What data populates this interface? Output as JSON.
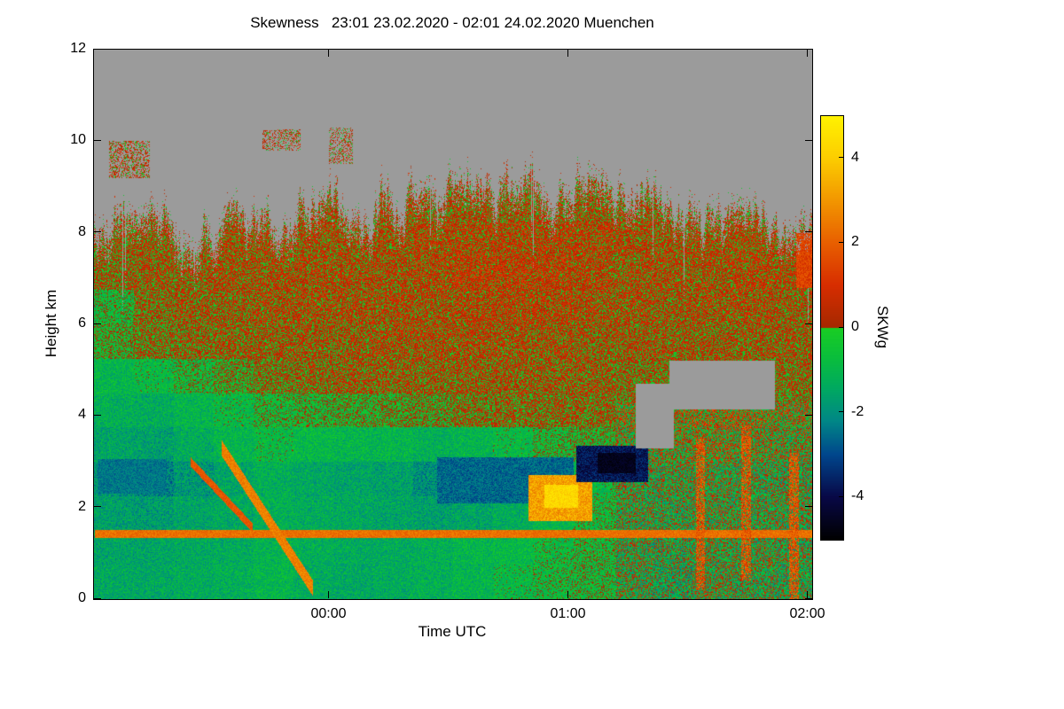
{
  "chart_data": {
    "type": "heatmap",
    "title": "Skewness   23:01 23.02.2020 - 02:01 24.02.2020 Muenchen",
    "xlabel": "Time UTC",
    "ylabel": "Height km",
    "x_range": [
      23.0167,
      26.0167
    ],
    "y_range": [
      0,
      12
    ],
    "x_ticks": [
      {
        "label": "00:00",
        "t": 24.0
      },
      {
        "label": "01:00",
        "t": 25.0
      },
      {
        "label": "02:00",
        "t": 26.0
      }
    ],
    "y_ticks": [
      {
        "label": "0",
        "h": 0
      },
      {
        "label": "2",
        "h": 2
      },
      {
        "label": "4",
        "h": 4
      },
      {
        "label": "6",
        "h": 6
      },
      {
        "label": "8",
        "h": 8
      },
      {
        "label": "10",
        "h": 10
      },
      {
        "label": "12",
        "h": 12
      }
    ],
    "colorbar": {
      "label": "SKWg",
      "range": [
        -5,
        5
      ],
      "ticks": [
        {
          "label": "4",
          "v": 4
        },
        {
          "label": "2",
          "v": 2
        },
        {
          "label": "0",
          "v": 0
        },
        {
          "label": "-2",
          "v": -2
        },
        {
          "label": "-4",
          "v": -4
        }
      ]
    },
    "no_data_rgb": [
      155,
      155,
      155
    ],
    "noise_amp": 0.9,
    "colormap": {
      "negative": [
        [
          -5,
          0,
          0,
          0
        ],
        [
          -4,
          8,
          8,
          70
        ],
        [
          -3,
          0,
          70,
          140
        ],
        [
          -2.2,
          0,
          135,
          135
        ],
        [
          -1.4,
          0,
          170,
          95
        ],
        [
          -0.7,
          10,
          190,
          60
        ],
        [
          0,
          25,
          205,
          35
        ]
      ],
      "positive": [
        [
          0,
          165,
          40,
          0
        ],
        [
          1,
          215,
          45,
          0
        ],
        [
          2,
          232,
          95,
          0
        ],
        [
          3,
          242,
          150,
          0
        ],
        [
          4,
          252,
          205,
          0
        ],
        [
          5,
          255,
          242,
          0
        ]
      ]
    },
    "grid": {
      "nx": 18,
      "ny": 16,
      "row_order": "bottom-to-top",
      "cloud_top": [
        8.1,
        8.2,
        7.6,
        8.3,
        8.0,
        8.5,
        8.4,
        8.6,
        8.7,
        8.9,
        8.8,
        8.7,
        8.9,
        8.5,
        8.4,
        8.1,
        8.3,
        7.9
      ],
      "values": [
        [
          -1.4,
          -1.4,
          -1.3,
          -1.2,
          -1.0,
          -1.3,
          -1.4,
          -1.3,
          -1.2,
          -1.0,
          -0.8,
          -0.6,
          -0.5,
          -0.6,
          -0.8,
          -0.5,
          -0.6,
          -0.7
        ],
        [
          -1.5,
          -1.5,
          -1.4,
          -1.3,
          -1.1,
          -1.2,
          -1.3,
          -1.3,
          -1.2,
          -1.0,
          -0.9,
          -0.7,
          -0.5,
          -0.5,
          -0.7,
          -0.5,
          -0.5,
          -0.6
        ],
        [
          -1.6,
          -1.7,
          -1.5,
          -1.4,
          -1.2,
          -1.3,
          -1.4,
          -1.5,
          -1.6,
          -1.5,
          -1.3,
          -1.0,
          -0.6,
          -0.5,
          -0.6,
          -0.4,
          -0.5,
          -0.5
        ],
        [
          -1.8,
          -2.2,
          -1.8,
          -1.5,
          -1.2,
          -1.4,
          -1.5,
          -1.6,
          -2.0,
          -2.2,
          -2.0,
          -1.5,
          -0.8,
          -0.5,
          -0.5,
          -0.4,
          -0.5,
          -0.6
        ],
        [
          -1.5,
          -1.6,
          -1.3,
          -1.0,
          -0.8,
          -0.9,
          -1.0,
          -1.0,
          -1.2,
          -1.0,
          -0.8,
          -0.5,
          -0.3,
          -0.2,
          -0.2,
          0.0,
          -0.2,
          -0.3
        ],
        [
          -1.2,
          -1.3,
          -1.0,
          -0.8,
          -0.5,
          -0.4,
          -0.3,
          -0.2,
          -0.1,
          0.1,
          0.2,
          0.2,
          0.2,
          0.1,
          0.0,
          0.2,
          0.1,
          0.0
        ],
        [
          -1.0,
          -0.8,
          -0.5,
          -0.2,
          0.1,
          0.2,
          0.3,
          0.3,
          0.3,
          0.3,
          0.3,
          0.3,
          0.3,
          0.2,
          0.2,
          0.3,
          0.2,
          0.2
        ],
        [
          -0.3,
          0.1,
          0.2,
          0.3,
          0.3,
          0.3,
          0.3,
          0.4,
          0.4,
          0.4,
          0.4,
          0.4,
          0.3,
          0.3,
          0.3,
          0.3,
          0.3,
          0.3
        ],
        [
          -0.5,
          0.2,
          0.3,
          0.3,
          0.4,
          0.4,
          0.4,
          0.4,
          0.4,
          0.5,
          0.5,
          0.5,
          0.4,
          0.4,
          0.3,
          0.4,
          0.4,
          0.3
        ],
        [
          0.2,
          0.3,
          0.3,
          0.4,
          0.4,
          0.4,
          0.4,
          0.4,
          0.5,
          0.6,
          0.6,
          0.6,
          0.5,
          0.4,
          0.4,
          0.4,
          0.5,
          0.4
        ],
        [
          0.3,
          0.3,
          0.3,
          0.4,
          0.4,
          0.4,
          0.4,
          0.4,
          0.5,
          0.5,
          0.5,
          0.5,
          0.5,
          0.4,
          0.4,
          0.4,
          0.4,
          0.4
        ],
        [
          0.3,
          0.3,
          0.3,
          0.3,
          0.3,
          0.3,
          0.3,
          0.3,
          0.3,
          0.3,
          0.3,
          0.3,
          0.3,
          0.3,
          0.3,
          0.3,
          0.3,
          0.3
        ],
        [
          0.3,
          0.3,
          0.3,
          0.3,
          0.3,
          0.3,
          0.3,
          0.3,
          0.3,
          0.3,
          0.3,
          0.3,
          0.3,
          0.3,
          0.3,
          0.3,
          0.3,
          0.3
        ],
        [
          0.3,
          0.3,
          0.3,
          0.3,
          0.3,
          0.3,
          0.3,
          0.3,
          0.3,
          0.3,
          0.3,
          0.3,
          0.3,
          0.3,
          0.3,
          0.3,
          0.3,
          0.3
        ],
        [
          0.3,
          0.3,
          0.3,
          0.3,
          0.3,
          0.3,
          0.3,
          0.3,
          0.3,
          0.3,
          0.3,
          0.3,
          0.3,
          0.3,
          0.3,
          0.3,
          0.3,
          0.3
        ],
        [
          0.3,
          0.3,
          0.3,
          0.3,
          0.3,
          0.3,
          0.3,
          0.3,
          0.3,
          0.3,
          0.3,
          0.3,
          0.3,
          0.3,
          0.3,
          0.3,
          0.3,
          0.3
        ]
      ]
    },
    "features": [
      {
        "type": "noise",
        "t0": 25.2,
        "t1": 26.02,
        "h0": 0,
        "h1": 4.3,
        "amp": 1.7
      },
      {
        "type": "rect",
        "t0": 23.03,
        "t1": 23.32,
        "h0": 2.3,
        "h1": 3.05,
        "v": -2.4,
        "amp": 0.5
      },
      {
        "type": "rect",
        "t0": 24.45,
        "t1": 25.02,
        "h0": 2.1,
        "h1": 3.1,
        "v": -2.6,
        "amp": 0.6
      },
      {
        "type": "rect",
        "t0": 23.02,
        "t1": 26.02,
        "h0": 1.33,
        "h1": 1.5,
        "v": 2.3,
        "amp": 0.5
      },
      {
        "type": "diag",
        "t0": 23.55,
        "t1": 23.93,
        "ha": 3.3,
        "hb": 0.25,
        "h0": 0.08,
        "h1": 3.47,
        "w": 0.17,
        "v": 2.6,
        "amp": 0.5
      },
      {
        "type": "diag",
        "t0": 23.42,
        "t1": 23.68,
        "ha": 3.0,
        "hb": 1.55,
        "h0": 1.45,
        "h1": 3.1,
        "w": 0.1,
        "v": 1.8,
        "amp": 0.4
      },
      {
        "type": "rect",
        "t0": 24.83,
        "t1": 25.1,
        "h0": 1.7,
        "h1": 2.7,
        "v": 3.2,
        "amp": 0.8
      },
      {
        "type": "rect",
        "t0": 24.9,
        "t1": 25.04,
        "h0": 2.0,
        "h1": 2.5,
        "v": 4.3,
        "amp": 0.5
      },
      {
        "type": "rect",
        "t0": 25.03,
        "t1": 25.33,
        "h0": 2.55,
        "h1": 3.35,
        "v": -3.8,
        "amp": 0.7
      },
      {
        "type": "rect",
        "t0": 25.12,
        "t1": 25.28,
        "h0": 2.75,
        "h1": 3.2,
        "v": -4.6,
        "amp": 0.3
      },
      {
        "type": "rect",
        "t0": 25.28,
        "t1": 25.44,
        "h0": 3.3,
        "h1": 4.7,
        "v": null
      },
      {
        "type": "rect",
        "t0": 25.42,
        "t1": 25.86,
        "h0": 4.15,
        "h1": 5.2,
        "v": null
      },
      {
        "type": "rect",
        "t0": 23.08,
        "t1": 23.25,
        "h0": 9.2,
        "h1": 10.0,
        "v": 0.4,
        "p": 0.45
      },
      {
        "type": "rect",
        "t0": 23.72,
        "t1": 23.88,
        "h0": 9.8,
        "h1": 10.25,
        "v": 0.4,
        "p": 0.4
      },
      {
        "type": "rect",
        "t0": 24.0,
        "t1": 24.1,
        "h0": 9.5,
        "h1": 10.3,
        "v": 0.4,
        "p": 0.35
      },
      {
        "type": "rect",
        "t0": 25.53,
        "t1": 25.57,
        "h0": 0.2,
        "h1": 3.5,
        "v": 1.8,
        "p": 0.7,
        "amp": 0.8
      },
      {
        "type": "rect",
        "t0": 25.72,
        "t1": 25.76,
        "h0": 0.4,
        "h1": 3.8,
        "v": 1.8,
        "p": 0.7,
        "amp": 0.8
      },
      {
        "type": "rect",
        "t0": 25.92,
        "t1": 25.96,
        "h0": 0.0,
        "h1": 3.2,
        "v": 1.8,
        "p": 0.7,
        "amp": 0.8
      },
      {
        "type": "rect",
        "t0": 25.95,
        "t1": 26.02,
        "h0": 6.8,
        "h1": 8.0,
        "v": 1.4,
        "amp": 0.7
      }
    ]
  }
}
